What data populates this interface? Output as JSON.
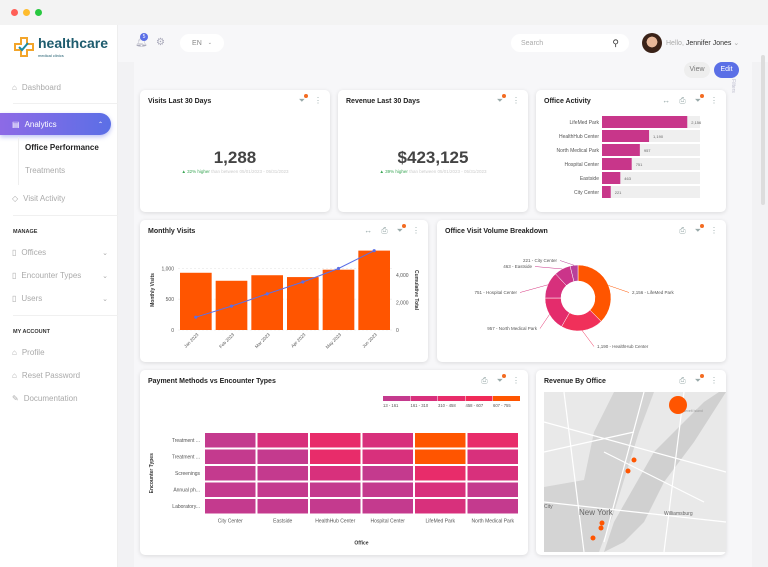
{
  "window": {
    "dots": [
      "#ff5f57",
      "#febc2e",
      "#28c840"
    ]
  },
  "brand": {
    "name": "healthcare",
    "tagline": "medical clinics"
  },
  "sidebar": {
    "dashboard": "Dashboard",
    "analytics": "Analytics",
    "office_performance": "Office Performance",
    "treatments": "Treatments",
    "visit_activity": "Visit Activity",
    "manage_title": "MANAGE",
    "offices": "Offices",
    "encounter_types": "Encounter Types",
    "users": "Users",
    "account_title": "MY ACCOUNT",
    "profile": "Profile",
    "reset_password": "Reset Password",
    "documentation": "Documentation"
  },
  "header": {
    "notification_count": "5",
    "language": "EN",
    "search_placeholder": "Search",
    "greeting": "Hello,",
    "user_name": "Jennifer Jones"
  },
  "toolbar": {
    "view": "View",
    "edit": "Edit",
    "filters": "Filters"
  },
  "accent": "#5b6fe6",
  "visits": {
    "title": "Visits Last 30 Days",
    "value": "1,288",
    "change": "▲ 32% higher",
    "compare": "than between 05/01/2023 - 05/31/2023"
  },
  "revenue": {
    "title": "Revenue Last 30 Days",
    "value": "$423,125",
    "change": "▲ 39% higher",
    "compare": "than between 05/01/2023 - 05/31/2023"
  },
  "office_activity": {
    "title": "Office Activity"
  },
  "monthly_visits": {
    "title": "Monthly Visits"
  },
  "breakdown": {
    "title": "Office Visit Volume Breakdown"
  },
  "heatmap": {
    "title": "Payment Methods vs Encounter Types"
  },
  "revenue_map": {
    "title": "Revenue By Office",
    "labels": [
      "New York",
      "Williamsburg",
      "Roosevelt Island",
      "City"
    ]
  },
  "chart_data": [
    {
      "type": "bar",
      "orientation": "horizontal",
      "categories": [
        "LifeMed Park",
        "HealthHub Center",
        "North Medical Park",
        "Hospital Center",
        "Eastside",
        "City Center"
      ],
      "values": [
        2156,
        1190,
        957,
        751,
        463,
        221
      ],
      "value_labels": [
        "2,156",
        "1,190",
        "957",
        "751",
        "463",
        "221"
      ],
      "color": "#c8368a"
    },
    {
      "type": "bar",
      "categories": [
        "Jan 2023",
        "Feb 2023",
        "Mar 2023",
        "Apr 2023",
        "May 2023",
        "Jun 2023"
      ],
      "series": [
        {
          "name": "Monthly Visits",
          "type": "bar",
          "values": [
            930,
            800,
            890,
            860,
            980,
            1290
          ],
          "color": "#ff5500"
        },
        {
          "name": "Cumulative Total",
          "type": "line",
          "values": [
            930,
            1730,
            2620,
            3480,
            4460,
            5750
          ],
          "color": "#5b6fe6"
        }
      ],
      "ylabel": "Monthly Visits",
      "y2label": "Cumulative Total",
      "ylim": [
        0,
        1300
      ],
      "y2lim": [
        0,
        5800
      ],
      "yticks": [
        "0",
        "500",
        "1,000"
      ],
      "y2ticks": [
        "0",
        "2,000",
        "4,000"
      ],
      "grid": true
    },
    {
      "type": "pie",
      "donut": true,
      "categories": [
        "LifeMed Park",
        "HealthHub Center",
        "North Medical Park",
        "Hospital Center",
        "Eastside",
        "City Center"
      ],
      "values": [
        2156,
        1190,
        957,
        751,
        463,
        221
      ],
      "labels": [
        "2,156 - LifeMed Park",
        "1,190 - HealthHub Center",
        "957 - North Medical Park",
        "751 - Hospital Center",
        "463 - Eastside",
        "221 - City Center"
      ],
      "colors": [
        "#ff5500",
        "#f0305a",
        "#e42c6c",
        "#d7307c",
        "#cb348a",
        "#b9409a"
      ]
    },
    {
      "type": "heatmap",
      "xlabel": "Office",
      "ylabel": "Encounter Types",
      "x": [
        "City Center",
        "Eastside",
        "HealthHub Center",
        "Hospital Center",
        "LifeMed Park",
        "North Medical Park"
      ],
      "y": [
        "Treatment ...",
        "Treatment ...",
        "Screenings",
        "Annual ph...",
        "Laboratory..."
      ],
      "legend": [
        "13 - 161",
        "161 - 310",
        "310 - 458",
        "458 - 607",
        "607 - 755"
      ],
      "legend_colors": [
        "#c43a8e",
        "#d8307c",
        "#e82c6a",
        "#f02a58",
        "#ff5500"
      ],
      "levels": [
        [
          1,
          2,
          3,
          2,
          5,
          3
        ],
        [
          1,
          1,
          3,
          2,
          5,
          2
        ],
        [
          1,
          1,
          2,
          1,
          3,
          2
        ],
        [
          1,
          1,
          1,
          1,
          2,
          1
        ],
        [
          1,
          1,
          1,
          1,
          2,
          1
        ]
      ]
    }
  ]
}
